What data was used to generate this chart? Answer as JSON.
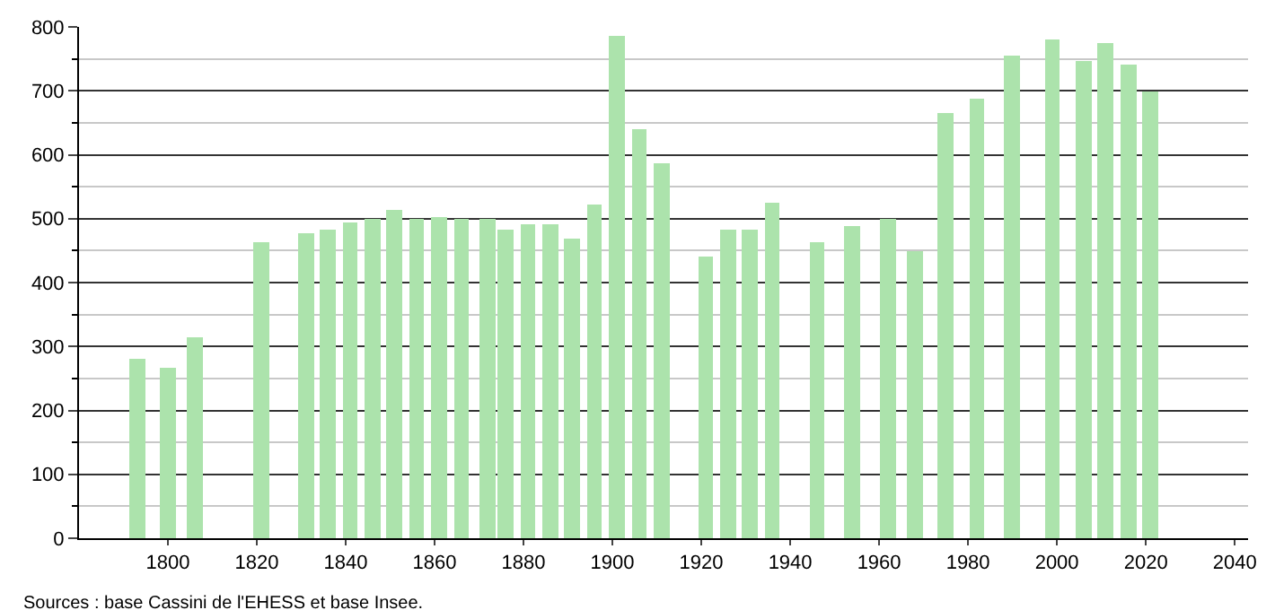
{
  "chart_data": {
    "type": "bar",
    "x": [
      1793,
      1800,
      1806,
      1821,
      1831,
      1836,
      1841,
      1846,
      1851,
      1856,
      1861,
      1866,
      1872,
      1876,
      1881,
      1886,
      1891,
      1896,
      1901,
      1906,
      1911,
      1921,
      1926,
      1931,
      1936,
      1946,
      1954,
      1962,
      1968,
      1975,
      1982,
      1990,
      1999,
      2006,
      2011,
      2016,
      2021
    ],
    "values": [
      282,
      268,
      315,
      462,
      478,
      484,
      494,
      500,
      514,
      500,
      503,
      500,
      500,
      484,
      492,
      492,
      470,
      522,
      787,
      641,
      588,
      440,
      484,
      484,
      525,
      464,
      489,
      500,
      450,
      665,
      687,
      756,
      780,
      747,
      774,
      741,
      699
    ],
    "color": "#ace3ac",
    "xlim": [
      1780,
      2043
    ],
    "xticks": [
      1800,
      1820,
      1840,
      1860,
      1880,
      1900,
      1920,
      1940,
      1960,
      1980,
      2000,
      2020,
      2040
    ],
    "ylim": [
      0,
      800
    ],
    "yticks": [
      0,
      {
        "value": 50,
        "label": null
      },
      100,
      {
        "value": 150,
        "label": null
      },
      200,
      {
        "value": 250,
        "label": null
      },
      300,
      {
        "value": 350,
        "label": null
      },
      400,
      {
        "value": 450,
        "label": null
      },
      500,
      {
        "value": 550,
        "label": null
      },
      600,
      {
        "value": 650,
        "label": null
      },
      700,
      {
        "value": 750,
        "label": null
      },
      800
    ],
    "grid": "y",
    "annotations": [
      "Sources : base Cassini de l'EHESS et base Insee."
    ]
  }
}
